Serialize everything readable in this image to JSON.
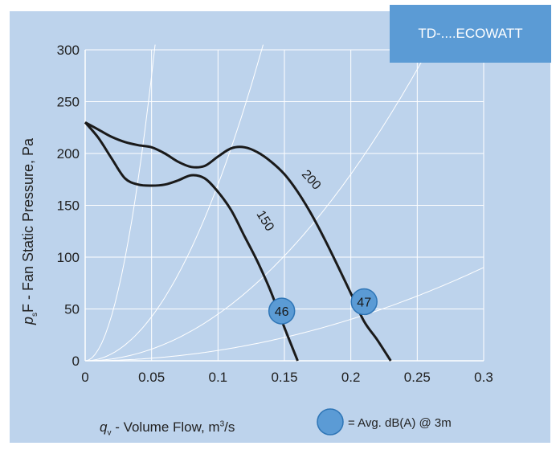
{
  "chart_data": {
    "type": "line",
    "title": "TD-....ECOWATT",
    "ylabel_prefix": "p",
    "ylabel_sub": "s",
    "ylabel_rest": "F - Fan Static Pressure, Pa",
    "xlabel_prefix": "q",
    "xlabel_sub": "v",
    "xlabel_rest": " - Volume Flow, m",
    "xlabel_sup": "3",
    "xlabel_tail": "/s",
    "xlim": [
      0,
      0.3
    ],
    "ylim": [
      0,
      300
    ],
    "x_ticks": [
      "0",
      "0.05",
      "0.1",
      "0.15",
      "0.2",
      "0.25",
      "0.3"
    ],
    "y_ticks": [
      "0",
      "50",
      "100",
      "150",
      "200",
      "250",
      "300"
    ],
    "grid": true,
    "series": [
      {
        "name": "150",
        "color": "#1a1a1a",
        "points": [
          [
            0,
            230
          ],
          [
            0.01,
            215
          ],
          [
            0.02,
            195
          ],
          [
            0.03,
            176
          ],
          [
            0.04,
            170
          ],
          [
            0.05,
            169
          ],
          [
            0.06,
            170
          ],
          [
            0.07,
            174
          ],
          [
            0.08,
            179
          ],
          [
            0.09,
            176
          ],
          [
            0.1,
            163
          ],
          [
            0.11,
            145
          ],
          [
            0.12,
            120
          ],
          [
            0.13,
            95
          ],
          [
            0.14,
            66
          ],
          [
            0.15,
            32
          ],
          [
            0.16,
            0
          ]
        ]
      },
      {
        "name": "200",
        "color": "#1a1a1a",
        "points": [
          [
            0,
            230
          ],
          [
            0.01,
            223
          ],
          [
            0.02,
            216
          ],
          [
            0.03,
            211
          ],
          [
            0.04,
            208
          ],
          [
            0.05,
            206
          ],
          [
            0.06,
            200
          ],
          [
            0.07,
            192
          ],
          [
            0.08,
            187
          ],
          [
            0.09,
            188
          ],
          [
            0.1,
            197
          ],
          [
            0.11,
            205
          ],
          [
            0.12,
            206
          ],
          [
            0.13,
            201
          ],
          [
            0.14,
            192
          ],
          [
            0.15,
            180
          ],
          [
            0.16,
            163
          ],
          [
            0.17,
            142
          ],
          [
            0.18,
            118
          ],
          [
            0.19,
            92
          ],
          [
            0.2,
            65
          ],
          [
            0.21,
            38
          ],
          [
            0.22,
            20
          ],
          [
            0.23,
            0
          ]
        ]
      }
    ],
    "system_curve_coefficients": [
      110000,
      17000,
      4500,
      1000
    ],
    "markers": [
      {
        "label": "46",
        "x": 0.148,
        "y": 48
      },
      {
        "label": "47",
        "x": 0.21,
        "y": 57
      }
    ],
    "legend_text": "= Avg. dB(A) @ 3m",
    "colors": {
      "panel": "#bdd3ec",
      "marker_fill": "#5b9bd5",
      "marker_stroke": "#2e75b6",
      "curve": "#1a1a1a",
      "grid": "#ffffff"
    }
  }
}
